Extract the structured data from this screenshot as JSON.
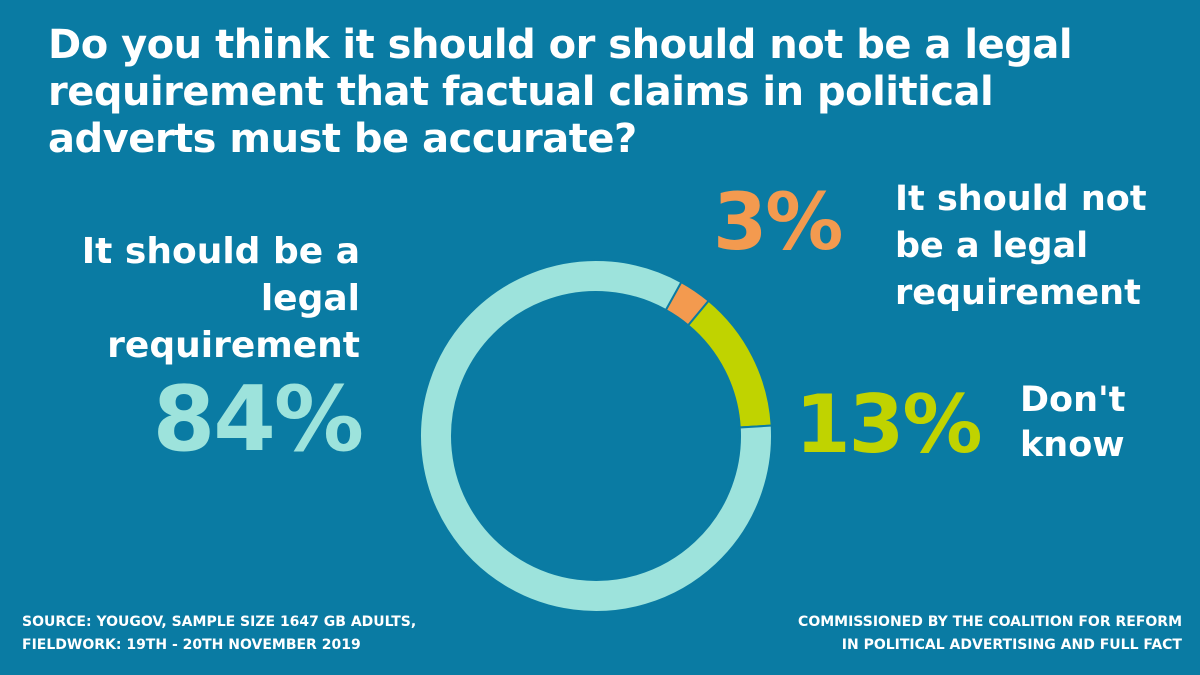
{
  "chart_data": {
    "type": "pie",
    "title": "Do you think it should or should not be a legal requirement that factual claims in political adverts must be accurate?",
    "slices": [
      {
        "label": "It should be a legal requirement",
        "value": 84,
        "value_label": "84%",
        "color": "#9de3dc"
      },
      {
        "label": "It should not be a legal requirement",
        "value": 3,
        "value_label": "3%",
        "color": "#f39a4f"
      },
      {
        "label": "Don't know",
        "value": 13,
        "value_label": "13%",
        "color": "#c0d300"
      }
    ],
    "donut": true,
    "start_slice": "It should not be a legal requirement"
  },
  "background_color": "#0a7ba3",
  "footer": {
    "source_line1": "SOURCE: YOUGOV, SAMPLE SIZE 1647 GB ADULTS,",
    "source_line2": "FIELDWORK: 19TH - 20TH NOVEMBER 2019",
    "credit_line1": "COMMISSIONED BY THE COALITION FOR REFORM",
    "credit_line2": "IN POLITICAL ADVERTISING AND FULL FACT"
  }
}
